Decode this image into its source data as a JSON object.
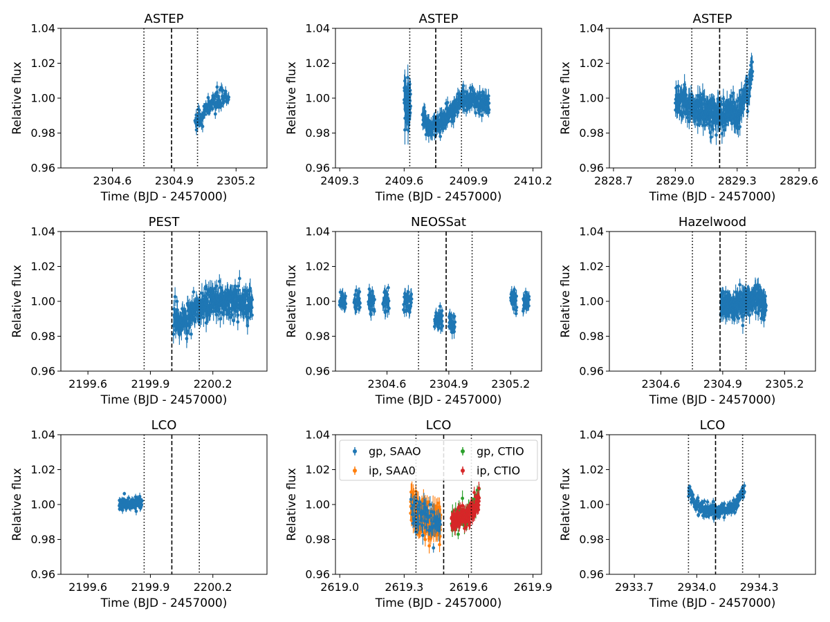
{
  "colors": {
    "C0": "#1f77b4",
    "C1": "#ff7f0e",
    "C2": "#2ca02c",
    "C3": "#d62728"
  },
  "chart_data": [
    {
      "type": "scatter",
      "title": "ASTEP",
      "xlabel": "Time (BJD - 2457000)",
      "ylabel": "Relative flux",
      "xlim": [
        2304.35,
        2305.35
      ],
      "ylim": [
        0.96,
        1.04
      ],
      "xticks": [
        "2304.6",
        "2304.9",
        "2305.2"
      ],
      "yticks": [
        "0.96",
        "0.98",
        "1.00",
        "1.02",
        "1.04"
      ],
      "vlines": {
        "dotted": [
          2304.753,
          2305.013
        ],
        "dashed": 2304.887
      },
      "segments": [
        {
          "series": 0,
          "pts": [
            [
              2305.0,
              0.987,
              0.985
            ],
            [
              2305.04,
              0.992,
              0.989
            ],
            [
              2305.08,
              0.997,
              0.997
            ],
            [
              2305.13,
              1.0,
              0.999
            ],
            [
              2305.165,
              1.0,
              1.0
            ]
          ],
          "noise": 0.0025,
          "n": 110
        }
      ],
      "series_names": [
        "ASTEP"
      ]
    },
    {
      "type": "scatter",
      "title": "ASTEP",
      "xlabel": "Time (BJD - 2457000)",
      "ylabel": "Relative flux",
      "xlim": [
        2409.28,
        2410.24
      ],
      "ylim": [
        0.96,
        1.04
      ],
      "xticks": [
        "2409.3",
        "2409.6",
        "2409.9",
        "2410.2"
      ],
      "yticks": [
        "0.96",
        "0.98",
        "1.00",
        "1.02",
        "1.04"
      ],
      "vlines": {
        "dotted": [
          2409.626,
          2409.867
        ],
        "dashed": 2409.747
      },
      "segments": [
        {
          "series": 0,
          "pts": [
            [
              2409.6,
              1.0,
              1.0
            ],
            [
              2409.63,
              0.995,
              0.995
            ]
          ],
          "noise": 0.006,
          "n": 60
        },
        {
          "series": 0,
          "pts": [
            [
              2409.685,
              0.992,
              0.988
            ],
            [
              2409.72,
              0.982,
              0.98
            ],
            [
              2409.76,
              0.984,
              0.986
            ],
            [
              2409.82,
              0.99,
              0.993
            ],
            [
              2409.87,
              1.0,
              1.002
            ],
            [
              2409.92,
              1.0,
              1.0
            ],
            [
              2409.996,
              0.998,
              0.996
            ]
          ],
          "noise": 0.0032,
          "n": 320
        }
      ],
      "series_names": [
        "ASTEP"
      ]
    },
    {
      "type": "scatter",
      "title": "ASTEP",
      "xlabel": "Time (BJD - 2457000)",
      "ylabel": "Relative flux",
      "xlim": [
        2828.68,
        2829.68
      ],
      "ylim": [
        0.96,
        1.04
      ],
      "xticks": [
        "2828.7",
        "2829.0",
        "2829.3",
        "2829.6"
      ],
      "yticks": [
        "0.96",
        "0.98",
        "1.00",
        "1.02",
        "1.04"
      ],
      "vlines": {
        "dotted": [
          2829.08,
          2829.348
        ],
        "dashed": 2829.215
      },
      "segments": [
        {
          "series": 0,
          "pts": [
            [
              2829.0,
              1.0,
              1.0
            ],
            [
              2829.1,
              0.995,
              0.993
            ],
            [
              2829.2,
              0.99,
              0.99
            ],
            [
              2829.3,
              0.99,
              0.992
            ],
            [
              2829.35,
              0.998,
              1.005
            ],
            [
              2829.375,
              1.01,
              1.02
            ]
          ],
          "noise": 0.0045,
          "n": 380
        }
      ],
      "series_names": [
        "ASTEP"
      ]
    },
    {
      "type": "scatter",
      "title": "PEST",
      "xlabel": "Time (BJD - 2457000)",
      "ylabel": "Relative flux",
      "xlim": [
        2199.47,
        2200.46
      ],
      "ylim": [
        0.96,
        1.04
      ],
      "xticks": [
        "2199.6",
        "2199.9",
        "2200.2"
      ],
      "yticks": [
        "0.96",
        "0.98",
        "1.00",
        "1.02",
        "1.04"
      ],
      "vlines": {
        "dotted": [
          2199.87,
          2200.135
        ],
        "dashed": 2200.003
      },
      "segments": [
        {
          "series": 0,
          "pts": [
            [
              2200.01,
              0.988,
              0.986
            ],
            [
              2200.07,
              0.988,
              0.99
            ],
            [
              2200.13,
              0.995,
              0.998
            ],
            [
              2200.2,
              1.0,
              1.0
            ],
            [
              2200.3,
              1.0,
              1.0
            ],
            [
              2200.39,
              0.999,
              0.998
            ]
          ],
          "noise": 0.0042,
          "n": 380
        }
      ],
      "series_names": [
        "PEST"
      ]
    },
    {
      "type": "scatter",
      "title": "NEOSSat",
      "xlabel": "Time (BJD - 2457000)",
      "ylabel": "Relative flux",
      "xlim": [
        2304.35,
        2305.35
      ],
      "ylim": [
        0.96,
        1.04
      ],
      "xticks": [
        "2304.6",
        "2304.9",
        "2305.2"
      ],
      "yticks": [
        "0.96",
        "0.98",
        "1.00",
        "1.02",
        "1.04"
      ],
      "vlines": {
        "dotted": [
          2304.753,
          2305.013
        ],
        "dashed": 2304.887
      },
      "segments": [
        {
          "series": 0,
          "pts": [
            [
              2304.37,
              1.0,
              1.0
            ],
            [
              2304.4,
              1.0,
              1.0
            ]
          ],
          "noise": 0.0028,
          "n": 28
        },
        {
          "series": 0,
          "pts": [
            [
              2304.44,
              1.0,
              1.0
            ],
            [
              2304.47,
              1.0,
              1.0
            ]
          ],
          "noise": 0.003,
          "n": 28
        },
        {
          "series": 0,
          "pts": [
            [
              2304.51,
              1.0,
              1.0
            ],
            [
              2304.54,
              1.0,
              1.0
            ]
          ],
          "noise": 0.003,
          "n": 30
        },
        {
          "series": 0,
          "pts": [
            [
              2304.58,
              1.0,
              1.0
            ],
            [
              2304.61,
              1.0,
              1.0
            ]
          ],
          "noise": 0.003,
          "n": 28
        },
        {
          "series": 0,
          "pts": [
            [
              2304.68,
              1.0,
              1.0
            ],
            [
              2304.72,
              1.0,
              1.0
            ]
          ],
          "noise": 0.003,
          "n": 34
        },
        {
          "series": 0,
          "pts": [
            [
              2304.83,
              0.99,
              0.989
            ],
            [
              2304.87,
              0.988,
              0.988
            ]
          ],
          "noise": 0.003,
          "n": 36
        },
        {
          "series": 0,
          "pts": [
            [
              2304.9,
              0.988,
              0.988
            ],
            [
              2304.93,
              0.987,
              0.987
            ]
          ],
          "noise": 0.003,
          "n": 26
        },
        {
          "series": 0,
          "pts": [
            [
              2305.2,
              1.0,
              1.0
            ],
            [
              2305.23,
              1.0,
              1.0
            ]
          ],
          "noise": 0.003,
          "n": 26
        },
        {
          "series": 0,
          "pts": [
            [
              2305.26,
              1.0,
              1.0
            ],
            [
              2305.29,
              1.0,
              1.0
            ]
          ],
          "noise": 0.003,
          "n": 30
        }
      ],
      "series_names": [
        "NEOSSat"
      ]
    },
    {
      "type": "scatter",
      "title": "Hazelwood",
      "xlabel": "Time (BJD - 2457000)",
      "ylabel": "Relative flux",
      "xlim": [
        2304.35,
        2305.35
      ],
      "ylim": [
        0.96,
        1.04
      ],
      "xticks": [
        "2304.6",
        "2304.9",
        "2305.2"
      ],
      "yticks": [
        "0.96",
        "0.98",
        "1.00",
        "1.02",
        "1.04"
      ],
      "vlines": {
        "dotted": [
          2304.753,
          2305.013
        ],
        "dashed": 2304.887
      },
      "segments": [
        {
          "series": 0,
          "pts": [
            [
              2304.89,
              0.998,
              0.998
            ],
            [
              2304.95,
              0.998,
              0.998
            ],
            [
              2305.0,
              1.0,
              1.0
            ],
            [
              2305.06,
              1.002,
              1.002
            ],
            [
              2305.11,
              1.0,
              0.998
            ]
          ],
          "noise": 0.0038,
          "n": 320
        }
      ],
      "series_names": [
        "Hazelwood"
      ]
    },
    {
      "type": "scatter",
      "title": "LCO",
      "xlabel": "Time (BJD - 2457000)",
      "ylabel": "Relative flux",
      "xlim": [
        2199.47,
        2200.46
      ],
      "ylim": [
        0.96,
        1.04
      ],
      "xticks": [
        "2199.6",
        "2199.9",
        "2200.2"
      ],
      "yticks": [
        "0.96",
        "0.98",
        "1.00",
        "1.02",
        "1.04"
      ],
      "vlines": {
        "dotted": [
          2199.87,
          2200.135
        ],
        "dashed": 2200.003
      },
      "segments": [
        {
          "series": 0,
          "pts": [
            [
              2199.75,
              1.0,
              1.0
            ],
            [
              2199.86,
              1.0,
              1.0
            ]
          ],
          "noise": 0.0017,
          "n": 120
        }
      ],
      "series_names": [
        "LCO"
      ]
    },
    {
      "type": "scatter",
      "title": "LCO",
      "xlabel": "Time (BJD - 2457000)",
      "ylabel": "Relative flux",
      "xlim": [
        2618.98,
        2619.94
      ],
      "ylim": [
        0.96,
        1.04
      ],
      "xticks": [
        "2619.0",
        "2619.3",
        "2619.6",
        "2619.9"
      ],
      "yticks": [
        "0.96",
        "0.98",
        "1.00",
        "1.02",
        "1.04"
      ],
      "vlines": {
        "dotted": [
          2619.355,
          2619.613
        ],
        "dashed": 2619.484
      },
      "segments": [
        {
          "series": 1,
          "pts": [
            [
              2619.33,
              1.0,
              1.0
            ],
            [
              2619.38,
              0.996,
              0.993
            ],
            [
              2619.42,
              0.99,
              0.988
            ],
            [
              2619.47,
              0.99,
              0.99
            ]
          ],
          "noise": 0.0045,
          "n": 240
        },
        {
          "series": 0,
          "pts": [
            [
              2619.33,
              1.0,
              1.0
            ],
            [
              2619.38,
              0.996,
              0.993
            ],
            [
              2619.42,
              0.99,
              0.988
            ],
            [
              2619.47,
              0.99,
              0.99
            ]
          ],
          "noise": 0.0045,
          "n": 60
        },
        {
          "series": 2,
          "pts": [
            [
              2619.52,
              0.99,
              0.99
            ],
            [
              2619.58,
              0.992,
              0.995
            ],
            [
              2619.65,
              1.0,
              1.003
            ]
          ],
          "noise": 0.0035,
          "n": 80
        },
        {
          "series": 3,
          "pts": [
            [
              2619.52,
              0.99,
              0.99
            ],
            [
              2619.58,
              0.991,
              0.995
            ],
            [
              2619.65,
              0.999,
              1.002
            ]
          ],
          "noise": 0.0028,
          "n": 150
        }
      ],
      "series_names": [
        "gp, SAAO",
        "ip, SAA0",
        "gp, CTIO",
        "ip, CTIO"
      ],
      "legend": {
        "placement": "top",
        "labels": [
          "gp, SAAO",
          "gp, CTIO",
          "ip, SAA0",
          "ip, CTIO"
        ]
      }
    },
    {
      "type": "scatter",
      "title": "LCO",
      "xlabel": "Time (BJD - 2457000)",
      "ylabel": "Relative flux",
      "xlim": [
        2933.58,
        2934.57
      ],
      "ylim": [
        0.96,
        1.04
      ],
      "xticks": [
        "2933.7",
        "2934.0",
        "2934.3"
      ],
      "yticks": [
        "0.96",
        "0.98",
        "1.00",
        "1.02",
        "1.04"
      ],
      "vlines": {
        "dotted": [
          2933.96,
          2934.22
        ],
        "dashed": 2934.09
      },
      "segments": [
        {
          "series": 0,
          "pts": [
            [
              2933.96,
              1.008,
              1.007
            ],
            [
              2934.0,
              1.0,
              0.999
            ],
            [
              2934.04,
              0.997,
              0.997
            ],
            [
              2934.09,
              0.996,
              0.996
            ],
            [
              2934.14,
              0.997,
              0.997
            ],
            [
              2934.19,
              1.0,
              1.0
            ],
            [
              2934.23,
              1.008,
              1.01
            ]
          ],
          "noise": 0.0018,
          "n": 260
        }
      ],
      "series_names": [
        "LCO"
      ]
    }
  ]
}
